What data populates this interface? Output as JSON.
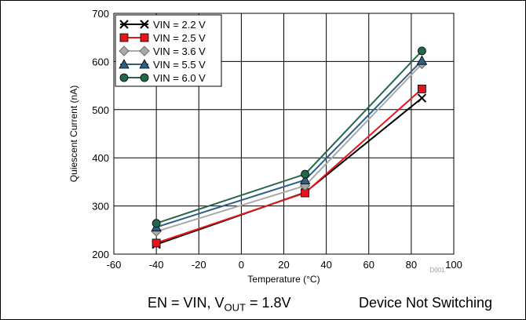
{
  "chart_data": {
    "type": "line",
    "xlabel": "Temperature (°C)",
    "ylabel": "Quiescent Current (nA)",
    "xlim": [
      -60,
      100
    ],
    "ylim": [
      200,
      700
    ],
    "xticks": [
      -60,
      -40,
      -20,
      0,
      20,
      40,
      60,
      80,
      100
    ],
    "yticks": [
      200,
      300,
      400,
      500,
      600,
      700
    ],
    "grid": true,
    "legend_position": "top-left",
    "x": [
      -40,
      30,
      85
    ],
    "series": [
      {
        "name": "VIN = 2.2 V",
        "values": [
          220,
          328,
          524
        ],
        "color": "#000000",
        "marker": "x"
      },
      {
        "name": "VIN = 2.5 V",
        "values": [
          223,
          327,
          543
        ],
        "color": "#e8141b",
        "marker": "square"
      },
      {
        "name": "VIN = 3.6 V",
        "values": [
          247,
          342,
          595
        ],
        "color": "#a9a9a9",
        "marker": "diamond"
      },
      {
        "name": "VIN = 5.5 V",
        "values": [
          256,
          354,
          602
        ],
        "color": "#2c5f86",
        "marker": "triangle"
      },
      {
        "name": "VIN = 6.0 V",
        "values": [
          264,
          366,
          622
        ],
        "color": "#24684a",
        "marker": "circle"
      }
    ],
    "figure_code": "D001"
  },
  "captions": {
    "conditions_pre": "EN = VIN, V",
    "conditions_sub": "OUT",
    "conditions_post": " = 1.8V",
    "mode": "Device Not Switching"
  }
}
